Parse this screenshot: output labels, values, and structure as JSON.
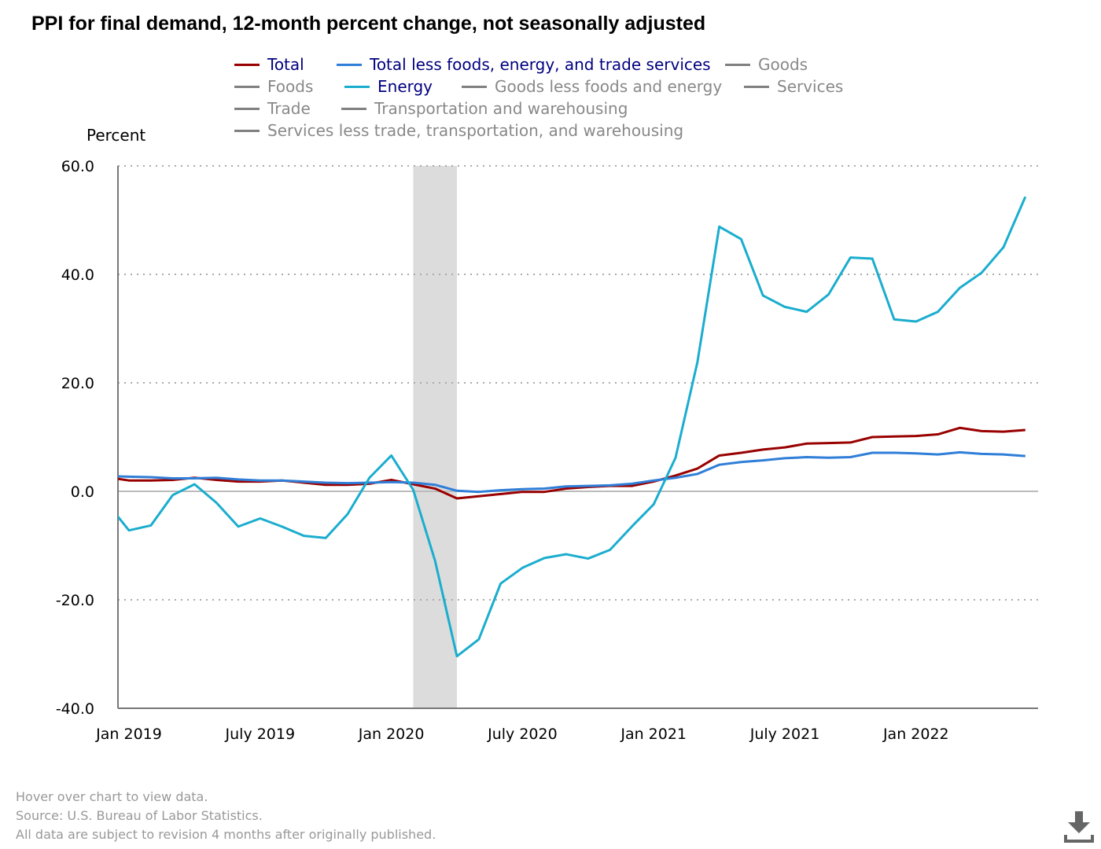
{
  "title": "PPI for final demand, 12-month percent change, not seasonally adjusted",
  "legend": [
    {
      "label": "Total",
      "color": "#990000",
      "active": true
    },
    {
      "label": "Total less foods, energy, and trade services",
      "color": "#2f7ed8",
      "active": true
    },
    {
      "label": "Goods",
      "color": "#808080",
      "active": false
    },
    {
      "label": "Foods",
      "color": "#808080",
      "active": false
    },
    {
      "label": "Energy",
      "color": "#1aadce",
      "active": true
    },
    {
      "label": "Goods less foods and energy",
      "color": "#808080",
      "active": false
    },
    {
      "label": "Services",
      "color": "#808080",
      "active": false
    },
    {
      "label": "Trade",
      "color": "#808080",
      "active": false
    },
    {
      "label": "Transportation and warehousing",
      "color": "#808080",
      "active": false
    },
    {
      "label": "Services less trade, transportation, and warehousing",
      "color": "#808080",
      "active": false
    }
  ],
  "footer": [
    "Hover over chart to view data.",
    "Source: U.S. Bureau of Labor Statistics.",
    "All data are subject to revision 4 months after originally published."
  ],
  "chart_data": {
    "type": "line",
    "title": "PPI for final demand, 12-month percent change, not seasonally adjusted",
    "ylabel": "Percent",
    "xlabel": "",
    "ylim": [
      -40,
      60
    ],
    "yticks": [
      "60.0",
      "40.0",
      "20.0",
      "0.0",
      "-20.0",
      "-40.0"
    ],
    "ytick_values": [
      60,
      40,
      20,
      0,
      -20,
      -40
    ],
    "xticks": [
      "Jan 2019",
      "July 2019",
      "Jan 2020",
      "July 2020",
      "Jan 2021",
      "July 2021",
      "Jan 2022"
    ],
    "xtick_index": [
      1,
      7,
      13,
      19,
      25,
      31,
      37
    ],
    "x": [
      "Dec 2018",
      "Jan 2019",
      "Feb 2019",
      "Mar 2019",
      "Apr 2019",
      "May 2019",
      "Jun 2019",
      "Jul 2019",
      "Aug 2019",
      "Sep 2019",
      "Oct 2019",
      "Nov 2019",
      "Dec 2019",
      "Jan 2020",
      "Feb 2020",
      "Mar 2020",
      "Apr 2020",
      "May 2020",
      "Jun 2020",
      "Jul 2020",
      "Aug 2020",
      "Sep 2020",
      "Oct 2020",
      "Nov 2020",
      "Dec 2020",
      "Jan 2021",
      "Feb 2021",
      "Mar 2021",
      "Apr 2021",
      "May 2021",
      "Jun 2021",
      "Jul 2021",
      "Aug 2021",
      "Sep 2021",
      "Oct 2021",
      "Nov 2021",
      "Dec 2021",
      "Jan 2022",
      "Feb 2022",
      "Mar 2022",
      "Apr 2022",
      "May 2022",
      "Jun 2022"
    ],
    "recession": [
      "Feb 2020",
      "Apr 2020"
    ],
    "grid": true,
    "series": [
      {
        "name": "Total",
        "color": "#990000",
        "values": [
          2.6,
          2.0,
          2.0,
          2.1,
          2.5,
          2.1,
          1.8,
          1.8,
          2.0,
          1.6,
          1.2,
          1.2,
          1.4,
          2.1,
          1.3,
          0.5,
          -1.3,
          -0.9,
          -0.5,
          -0.1,
          -0.1,
          0.5,
          0.8,
          1.0,
          1.0,
          1.8,
          2.9,
          4.2,
          6.6,
          7.1,
          7.7,
          8.1,
          8.8,
          8.9,
          9.0,
          10.0,
          10.1,
          10.2,
          10.5,
          11.7,
          11.1,
          11.0,
          11.3
        ]
      },
      {
        "name": "Total less foods, energy, and trade services",
        "color": "#2f7ed8",
        "values": [
          2.8,
          2.7,
          2.6,
          2.4,
          2.4,
          2.5,
          2.2,
          2.0,
          2.0,
          1.8,
          1.6,
          1.5,
          1.6,
          1.7,
          1.6,
          1.2,
          0.1,
          -0.1,
          0.2,
          0.4,
          0.5,
          0.9,
          1.0,
          1.1,
          1.4,
          2.0,
          2.5,
          3.2,
          4.9,
          5.4,
          5.7,
          6.1,
          6.3,
          6.2,
          6.3,
          7.1,
          7.1,
          7.0,
          6.8,
          7.2,
          6.9,
          6.8,
          6.5
        ]
      },
      {
        "name": "Energy",
        "color": "#1aadce",
        "values": [
          -2.2,
          -7.2,
          -6.3,
          -0.7,
          1.3,
          -2.1,
          -6.5,
          -5.0,
          -6.5,
          -8.2,
          -8.6,
          -4.2,
          2.5,
          6.6,
          0.3,
          -12.8,
          -30.4,
          -27.3,
          -17.0,
          -14.1,
          -12.3,
          -11.6,
          -12.4,
          -10.8,
          -6.5,
          -2.4,
          6.2,
          23.8,
          48.8,
          46.5,
          36.1,
          34.0,
          33.1,
          36.3,
          43.1,
          42.9,
          31.7,
          31.3,
          33.1,
          37.5,
          40.3,
          45.0,
          54.3
        ]
      }
    ]
  }
}
